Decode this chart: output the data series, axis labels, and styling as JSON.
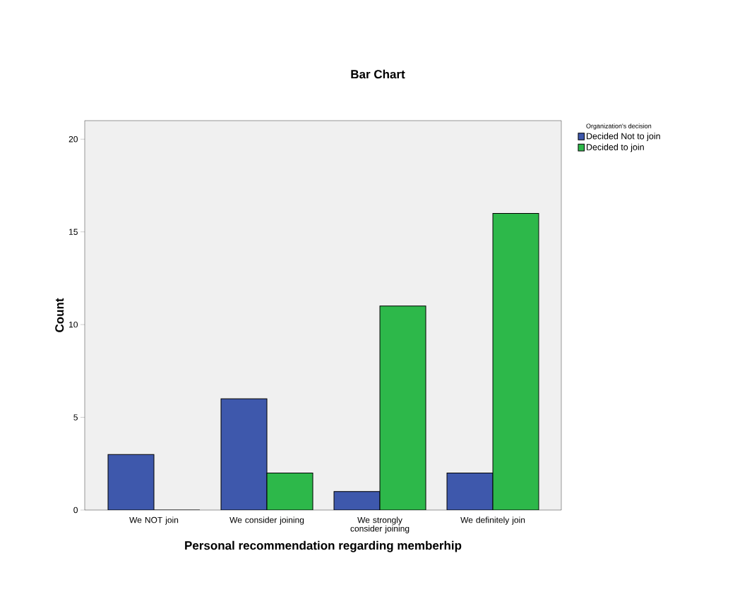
{
  "chart_data": {
    "type": "bar",
    "title": "Bar Chart",
    "xlabel": "Personal recommendation regarding memberhip",
    "ylabel": "Count",
    "legend_title": "Organization's decision",
    "categories": [
      "We NOT join",
      "We consider joining",
      "We strongly consider joining",
      "We definitely join"
    ],
    "series": [
      {
        "name": "Decided Not to join",
        "color": "#3e58ac",
        "values": [
          3,
          6,
          1,
          2
        ]
      },
      {
        "name": "Decided to join",
        "color": "#2db84a",
        "values": [
          0,
          2,
          11,
          16
        ]
      }
    ],
    "ylim": [
      0,
      21
    ],
    "yticks": [
      0,
      5,
      10,
      15,
      20
    ],
    "grid": false,
    "legend": "top right"
  }
}
